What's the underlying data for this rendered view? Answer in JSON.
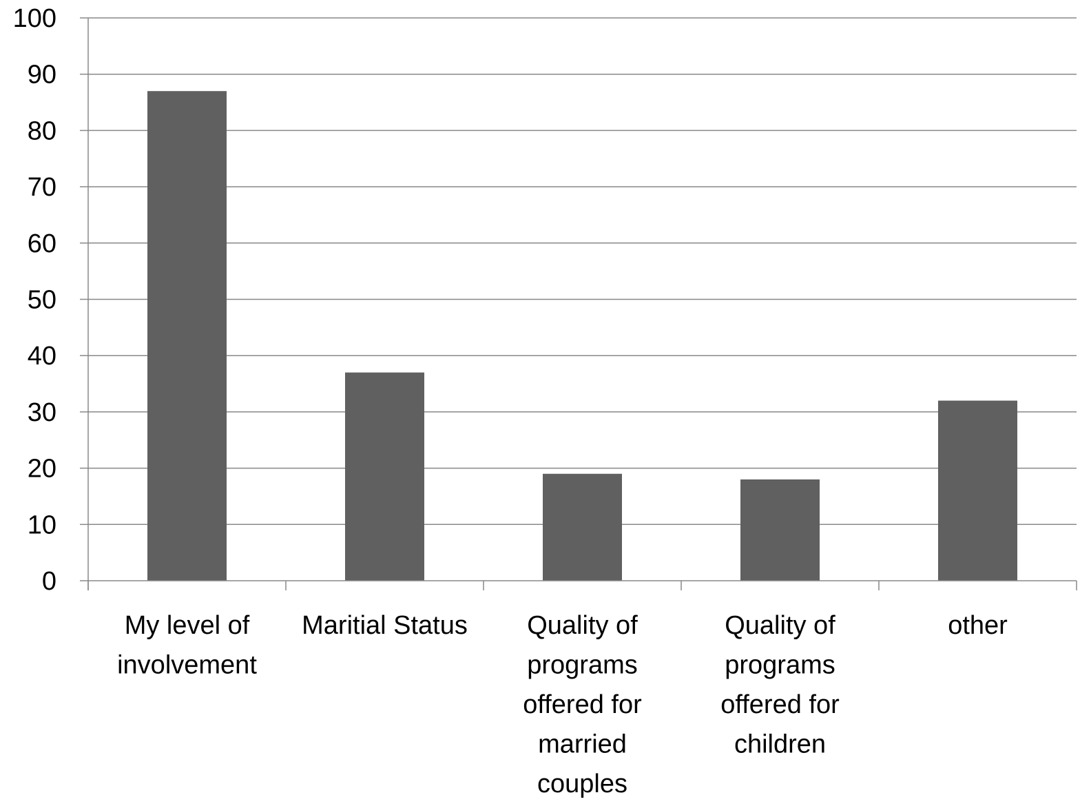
{
  "chart_data": {
    "type": "bar",
    "title": "",
    "xlabel": "",
    "ylabel": "",
    "ylim": [
      0,
      100
    ],
    "yticks": [
      "0",
      "10",
      "20",
      "30",
      "40",
      "50",
      "60",
      "70",
      "80",
      "90",
      "100"
    ],
    "grid": true,
    "legend": "none",
    "categories": [
      "My level of involvement",
      "Maritial Status",
      "Quality of programs offered for married couples",
      "Quality of programs offered for children",
      "other"
    ],
    "category_lines": [
      [
        "My level of",
        "involvement"
      ],
      [
        "Maritial Status"
      ],
      [
        "Quality of",
        "programs",
        "offered for",
        "married",
        "couples"
      ],
      [
        "Quality of",
        "programs",
        "offered for",
        "children"
      ],
      [
        "other"
      ]
    ],
    "values": [
      87,
      37,
      19,
      18,
      32
    ],
    "colors": {
      "bar": "#606060",
      "grid": "#888888",
      "axis": "#888888"
    }
  }
}
